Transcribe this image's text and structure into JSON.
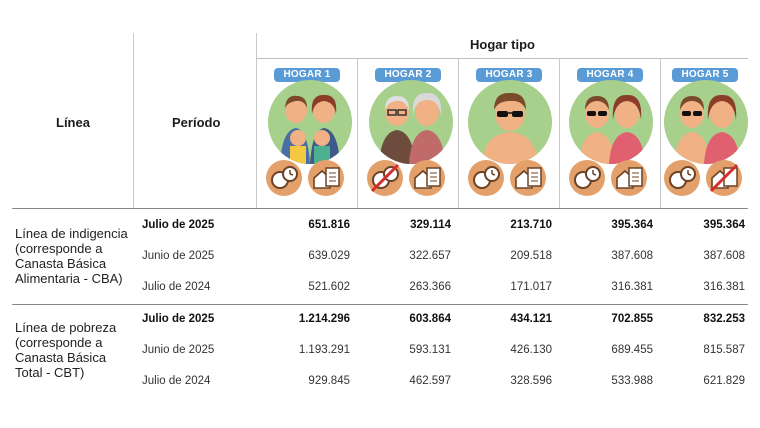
{
  "header": {
    "linea": "Línea",
    "periodo": "Período",
    "hogar_tipo": "Hogar tipo"
  },
  "hogares": [
    {
      "label": "HOGAR 1"
    },
    {
      "label": "HOGAR 2"
    },
    {
      "label": "HOGAR 3"
    },
    {
      "label": "HOGAR 4"
    },
    {
      "label": "HOGAR 5"
    }
  ],
  "colors": {
    "badge": "#5b9bd5",
    "circle_bg": "#a8d08d",
    "icon_bg": "#e3a06b",
    "strike": "#d32f2f"
  },
  "sections": [
    {
      "label": "Línea de indigencia (corresponde a Canasta Básica Alimentaria - CBA)",
      "rows": [
        {
          "periodo": "Julio de 2025",
          "values": [
            "651.816",
            "329.114",
            "213.710",
            "395.364",
            "395.364"
          ]
        },
        {
          "periodo": "Junio de 2025",
          "values": [
            "639.029",
            "322.657",
            "209.518",
            "387.608",
            "387.608"
          ]
        },
        {
          "periodo": "Julio de 2024",
          "values": [
            "521.602",
            "263.366",
            "171.017",
            "316.381",
            "316.381"
          ]
        }
      ]
    },
    {
      "label": "Línea de pobreza (corresponde a Canasta Básica Total - CBT)",
      "rows": [
        {
          "periodo": "Julio de 2025",
          "values": [
            "1.214.296",
            "603.864",
            "434.121",
            "702.855",
            "832.253"
          ]
        },
        {
          "periodo": "Junio de 2025",
          "values": [
            "1.193.291",
            "593.131",
            "426.130",
            "689.455",
            "815.587"
          ]
        },
        {
          "periodo": "Julio de 2024",
          "values": [
            "929.845",
            "462.597",
            "328.596",
            "533.988",
            "621.829"
          ]
        }
      ]
    }
  ]
}
